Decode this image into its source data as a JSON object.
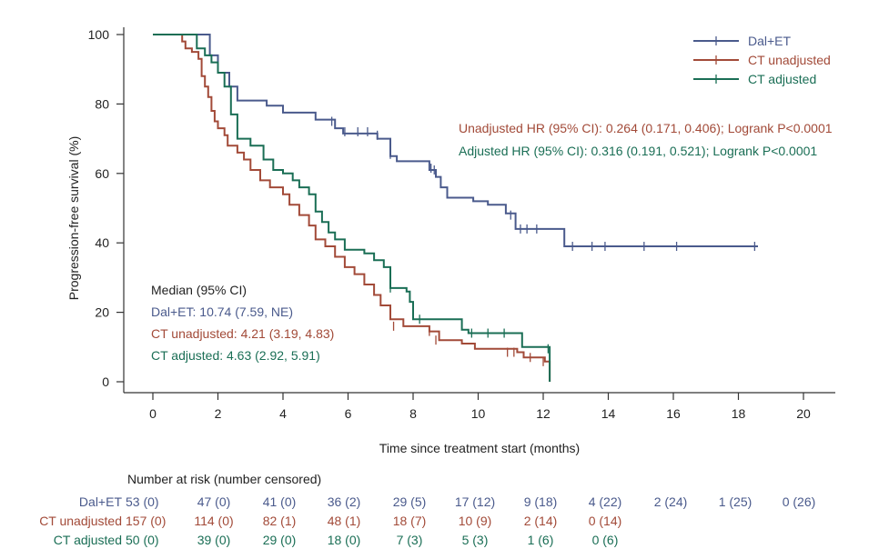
{
  "chart_data": {
    "type": "line",
    "subtype": "kaplan-meier step",
    "xlabel": "Time since treatment start (months)",
    "ylabel": "Progression-free survival (%)",
    "xlim": [
      0,
      20
    ],
    "ylim": [
      0,
      100
    ],
    "xticks": [
      "0",
      "2",
      "4",
      "6",
      "8",
      "10",
      "12",
      "14",
      "16",
      "18",
      "20"
    ],
    "yticks": [
      "0",
      "20",
      "40",
      "60",
      "80",
      "100"
    ],
    "grid": false,
    "legend_position": "top-right",
    "series": [
      {
        "name": "Dal+ET",
        "color": "#4a5a8c",
        "points": [
          [
            0,
            100
          ],
          [
            1.6,
            100
          ],
          [
            1.75,
            94
          ],
          [
            1.9,
            94
          ],
          [
            2.0,
            89
          ],
          [
            2.35,
            85
          ],
          [
            2.6,
            81
          ],
          [
            3.5,
            79.5
          ],
          [
            4.0,
            77.5
          ],
          [
            5.0,
            75.5
          ],
          [
            5.6,
            73
          ],
          [
            5.85,
            71.5
          ],
          [
            6.9,
            70
          ],
          [
            7.3,
            65
          ],
          [
            7.5,
            63.5
          ],
          [
            8.3,
            63.5
          ],
          [
            8.5,
            61
          ],
          [
            8.7,
            59
          ],
          [
            8.85,
            56
          ],
          [
            9.05,
            53
          ],
          [
            9.85,
            52
          ],
          [
            10.3,
            51
          ],
          [
            10.85,
            48.5
          ],
          [
            11.15,
            44
          ],
          [
            12.65,
            44
          ],
          [
            12.65,
            39
          ],
          [
            18.6,
            39
          ]
        ],
        "censored": [
          [
            5.5,
            75
          ],
          [
            5.9,
            72
          ],
          [
            6.3,
            72
          ],
          [
            6.6,
            72
          ],
          [
            6.9,
            71
          ],
          [
            7.3,
            65.5
          ],
          [
            8.55,
            61.5
          ],
          [
            8.65,
            61
          ],
          [
            11.0,
            48
          ],
          [
            11.3,
            44
          ],
          [
            11.5,
            44
          ],
          [
            11.8,
            44
          ],
          [
            12.9,
            39
          ],
          [
            13.5,
            39
          ],
          [
            13.9,
            39
          ],
          [
            15.1,
            39
          ],
          [
            16.1,
            39
          ],
          [
            18.5,
            39
          ]
        ]
      },
      {
        "name": "CT unadjusted",
        "color": "#a24a38",
        "points": [
          [
            0,
            100
          ],
          [
            0.8,
            100
          ],
          [
            0.9,
            98
          ],
          [
            1.0,
            96
          ],
          [
            1.2,
            95
          ],
          [
            1.4,
            93
          ],
          [
            1.5,
            88
          ],
          [
            1.6,
            85
          ],
          [
            1.7,
            82
          ],
          [
            1.8,
            78
          ],
          [
            1.9,
            75
          ],
          [
            2.0,
            73
          ],
          [
            2.2,
            71
          ],
          [
            2.3,
            68
          ],
          [
            2.6,
            66
          ],
          [
            2.8,
            64
          ],
          [
            3.0,
            61
          ],
          [
            3.3,
            58
          ],
          [
            3.6,
            56
          ],
          [
            4.0,
            54
          ],
          [
            4.2,
            51
          ],
          [
            4.5,
            48
          ],
          [
            4.8,
            45
          ],
          [
            5.0,
            41
          ],
          [
            5.3,
            39
          ],
          [
            5.6,
            36
          ],
          [
            5.9,
            33
          ],
          [
            6.2,
            31
          ],
          [
            6.5,
            28
          ],
          [
            6.8,
            25
          ],
          [
            7.0,
            22
          ],
          [
            7.3,
            18
          ],
          [
            7.7,
            16
          ],
          [
            8.5,
            14.5
          ],
          [
            8.8,
            12
          ],
          [
            9.5,
            11
          ],
          [
            9.9,
            9.5
          ],
          [
            11.2,
            8.5
          ],
          [
            11.4,
            7
          ],
          [
            12.0,
            7
          ],
          [
            12.05,
            5.8
          ],
          [
            12.2,
            5.8
          ],
          [
            12.2,
            0
          ]
        ],
        "censored": [
          [
            7.4,
            16
          ],
          [
            8.5,
            14.5
          ],
          [
            8.7,
            12
          ],
          [
            10.9,
            8.5
          ],
          [
            11.1,
            8.5
          ],
          [
            11.6,
            7
          ],
          [
            12.0,
            5.8
          ]
        ]
      },
      {
        "name": "CT adjusted",
        "color": "#1a6e55",
        "points": [
          [
            0,
            100
          ],
          [
            1.2,
            100
          ],
          [
            1.35,
            96
          ],
          [
            1.6,
            94
          ],
          [
            1.8,
            92
          ],
          [
            2.0,
            89
          ],
          [
            2.2,
            85
          ],
          [
            2.4,
            77
          ],
          [
            2.6,
            70
          ],
          [
            3.0,
            68
          ],
          [
            3.4,
            64
          ],
          [
            3.7,
            61
          ],
          [
            4.0,
            60
          ],
          [
            4.3,
            58
          ],
          [
            4.5,
            56
          ],
          [
            4.8,
            54
          ],
          [
            5.0,
            49
          ],
          [
            5.2,
            46
          ],
          [
            5.4,
            43
          ],
          [
            5.6,
            41
          ],
          [
            5.9,
            38
          ],
          [
            6.5,
            37
          ],
          [
            6.8,
            35
          ],
          [
            7.1,
            33
          ],
          [
            7.3,
            27
          ],
          [
            7.8,
            26
          ],
          [
            7.9,
            23
          ],
          [
            8.0,
            18
          ],
          [
            9.5,
            15
          ],
          [
            9.7,
            14
          ],
          [
            11.3,
            14
          ],
          [
            11.35,
            10
          ],
          [
            12.2,
            10
          ],
          [
            12.2,
            0
          ]
        ],
        "censored": [
          [
            7.3,
            27
          ],
          [
            8.2,
            18
          ],
          [
            9.8,
            14
          ],
          [
            10.3,
            14
          ],
          [
            10.8,
            14
          ],
          [
            12.15,
            9.5
          ]
        ]
      }
    ],
    "annotations": [
      {
        "text": "Unadjusted HR (95% CI): 0.264 (0.171, 0.406); Logrank P<0.0001",
        "color": "#a24a38"
      },
      {
        "text": "Adjusted HR (95% CI): 0.316 (0.191, 0.521); Logrank P<0.0001",
        "color": "#1a6e55"
      }
    ],
    "median_title": "Median (95% CI)",
    "medians": [
      {
        "text": "Dal+ET: 10.74 (7.59, NE)",
        "color": "#4a5a8c"
      },
      {
        "text": "CT unadjusted: 4.21 (3.19, 4.83)",
        "color": "#a24a38"
      },
      {
        "text": "CT adjusted: 4.63 (2.92, 5.91)",
        "color": "#1a6e55"
      }
    ],
    "risk_table": {
      "title": "Number at risk (number censored)",
      "rows": [
        {
          "label": "Dal+ET",
          "color": "#4a5a8c",
          "values": [
            "53 (0)",
            "47 (0)",
            "41 (0)",
            "36 (2)",
            "29 (5)",
            "17 (12)",
            "9 (18)",
            "4 (22)",
            "2 (24)",
            "1 (25)",
            "0 (26)"
          ]
        },
        {
          "label": "CT unadjusted",
          "color": "#a24a38",
          "values": [
            "157 (0)",
            "114 (0)",
            "82 (1)",
            "48 (1)",
            "18 (7)",
            "10 (9)",
            "2 (14)",
            "0 (14)"
          ]
        },
        {
          "label": "CT adjusted",
          "color": "#1a6e55",
          "values": [
            "50 (0)",
            "39 (0)",
            "29 (0)",
            "18 (0)",
            "7 (3)",
            "5 (3)",
            "1 (6)",
            "0 (6)"
          ]
        }
      ]
    }
  }
}
